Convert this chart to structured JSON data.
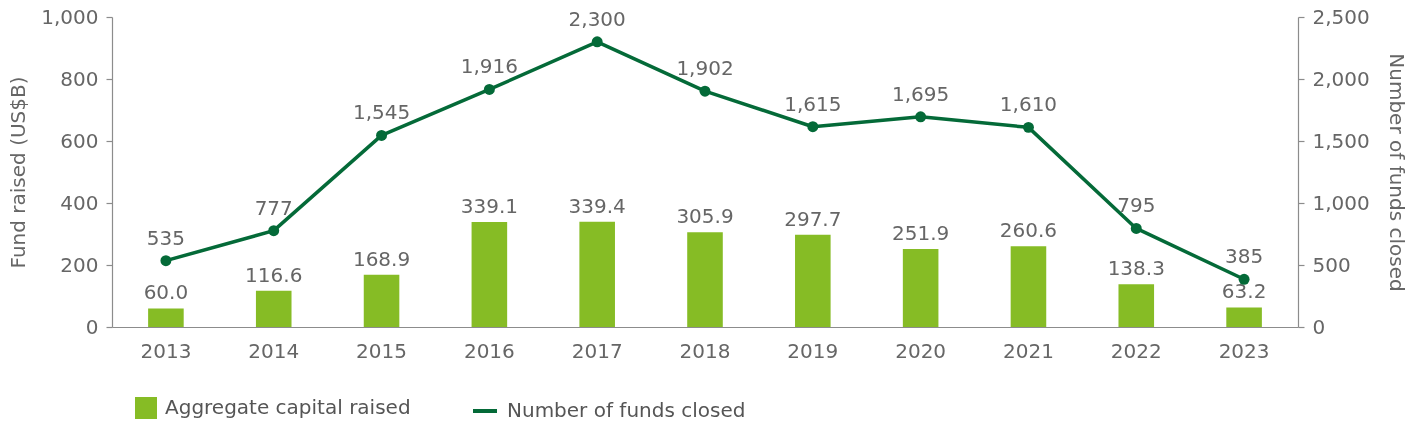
{
  "chart_data": {
    "type": "bar",
    "categories": [
      "2013",
      "2014",
      "2015",
      "2016",
      "2017",
      "2018",
      "2019",
      "2020",
      "2021",
      "2022",
      "2023"
    ],
    "series": [
      {
        "name": "Aggregate capital raised",
        "color": "#86bc25",
        "values": [
          60.0,
          116.6,
          168.9,
          339.1,
          339.4,
          305.9,
          297.7,
          251.9,
          260.6,
          138.3,
          63.2
        ],
        "value_labels": [
          "60.0",
          "116.6",
          "168.9",
          "339.1",
          "339.4",
          "305.9",
          "297.7",
          "251.9",
          "260.6",
          "138.3",
          "63.2"
        ]
      },
      {
        "name": "Number of funds closed",
        "type": "line",
        "axis": "y2",
        "color": "#046a38",
        "values": [
          535,
          777,
          1545,
          1916,
          2300,
          1902,
          1615,
          1695,
          1610,
          795,
          385
        ],
        "value_labels": [
          "535",
          "777",
          "1,545",
          "1,916",
          "2,300",
          "1,902",
          "1,615",
          "1,695",
          "1,610",
          "795",
          "385"
        ]
      }
    ],
    "ylabel": "Fund raised (US$B)",
    "y2label": "Number of funds closed",
    "ylim": [
      0,
      1000
    ],
    "yticks": [
      0,
      200,
      400,
      600,
      800,
      {
        "value": 1000,
        "label": "1,000"
      }
    ],
    "y2lim": [
      0,
      2500
    ],
    "y2ticks": [
      0,
      500,
      {
        "value": 1000,
        "label": "1,000"
      },
      {
        "value": 1500,
        "label": "1,500"
      },
      {
        "value": 2000,
        "label": "2,000"
      },
      {
        "value": 2500,
        "label": "2,500"
      }
    ],
    "marker": "circle",
    "legend": "bottom left"
  }
}
